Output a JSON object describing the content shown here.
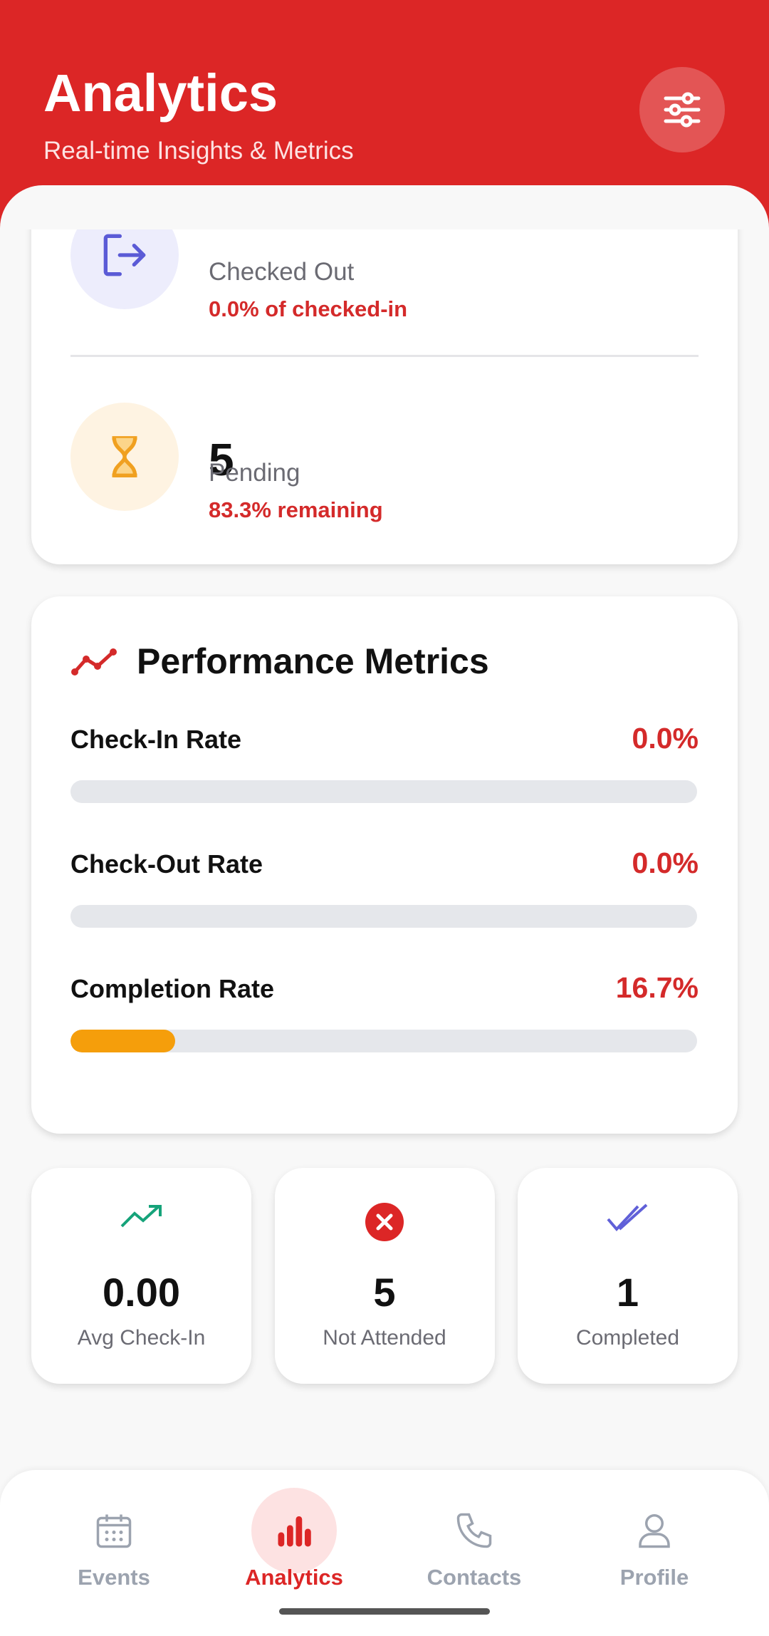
{
  "header": {
    "title": "Analytics",
    "subtitle": "Real-time Insights & Metrics"
  },
  "stats": [
    {
      "label": "Checked Out",
      "note": "0.0% of checked-in"
    },
    {
      "value": "5",
      "label": "Pending",
      "note": "83.3% remaining"
    }
  ],
  "performance": {
    "title": "Performance Metrics",
    "metrics": [
      {
        "label": "Check-In Rate",
        "value": 0.0,
        "value_label": "0.0%"
      },
      {
        "label": "Check-Out Rate",
        "value": 0.0,
        "value_label": "0.0%"
      },
      {
        "label": "Completion Rate",
        "value": 16.7,
        "value_label": "16.7%"
      }
    ]
  },
  "summary": [
    {
      "value": "0.00",
      "label": "Avg Check-In"
    },
    {
      "value": "5",
      "label": "Not Attended"
    },
    {
      "value": "1",
      "label": "Completed"
    }
  ],
  "nav": [
    "Events",
    "Analytics",
    "Contacts",
    "Profile"
  ]
}
